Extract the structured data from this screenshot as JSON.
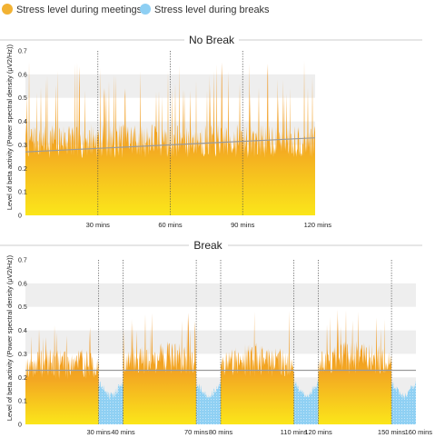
{
  "legend": [
    {
      "label": "Stress level during meetings",
      "color": "#f2b233",
      "icon": "orange-dot-icon"
    },
    {
      "label": "Stress level during breaks",
      "color": "#8ecff3",
      "icon": "blue-dot-icon"
    }
  ],
  "colors": {
    "meeting_top": "#ee8d1c",
    "meeting_bottom": "#fbe21a",
    "break_fill": "#8fd0f3",
    "trend_line": "#9a9a9a",
    "grid_band": "#eeeeee"
  },
  "chart_data": [
    {
      "type": "area",
      "title": "No Break",
      "ylabel": "Level of beta activity (Power spectral density (μV2/Hz))",
      "ylim": [
        0,
        0.7
      ],
      "yticks": [
        "0",
        "0.1",
        "0.2",
        "0.3",
        "0.4",
        "0.5",
        "0.6",
        "0.7"
      ],
      "xlim": [
        0,
        120
      ],
      "xticks": [
        {
          "value": 30,
          "label": "30 mins"
        },
        {
          "value": 60,
          "label": "60 mins"
        },
        {
          "value": 90,
          "label": "90 mins"
        },
        {
          "value": 120,
          "label": "120 mins"
        }
      ],
      "segments": [
        {
          "type": "meeting",
          "start": 0,
          "end": 120,
          "mean": 0.3,
          "peak": 0.66
        }
      ],
      "trend": {
        "start": [
          0,
          0.27
        ],
        "end": [
          120,
          0.33
        ]
      }
    },
    {
      "type": "area",
      "title": "Break",
      "ylabel": "Level of beta activity (Power spectral density (μV2/Hz))",
      "ylim": [
        0,
        0.7
      ],
      "yticks": [
        "0",
        "0.1",
        "0.2",
        "0.3",
        "0.4",
        "0.5",
        "0.6",
        "0.7"
      ],
      "xlim": [
        0,
        160
      ],
      "xticks": [
        {
          "value": 30,
          "label": "30 mins"
        },
        {
          "value": 40,
          "label": "40 mins"
        },
        {
          "value": 70,
          "label": "70 mins"
        },
        {
          "value": 80,
          "label": "80 mins"
        },
        {
          "value": 110,
          "label": "110 mins"
        },
        {
          "value": 120,
          "label": "120 mins"
        },
        {
          "value": 150,
          "label": "150 mins"
        },
        {
          "value": 160,
          "label": "160 mins"
        }
      ],
      "segments": [
        {
          "type": "meeting",
          "start": 0,
          "end": 30,
          "mean": 0.25,
          "peak": 0.43
        },
        {
          "type": "break",
          "start": 30,
          "end": 40,
          "mean": 0.12
        },
        {
          "type": "meeting",
          "start": 40,
          "end": 70,
          "mean": 0.27,
          "peak": 0.48
        },
        {
          "type": "break",
          "start": 70,
          "end": 80,
          "mean": 0.12
        },
        {
          "type": "meeting",
          "start": 80,
          "end": 110,
          "mean": 0.26,
          "peak": 0.52
        },
        {
          "type": "break",
          "start": 110,
          "end": 120,
          "mean": 0.12
        },
        {
          "type": "meeting",
          "start": 120,
          "end": 150,
          "mean": 0.27,
          "peak": 0.5
        },
        {
          "type": "break",
          "start": 150,
          "end": 160,
          "mean": 0.12
        }
      ],
      "trend": {
        "start": [
          0,
          0.23
        ],
        "end": [
          160,
          0.23
        ]
      }
    }
  ]
}
